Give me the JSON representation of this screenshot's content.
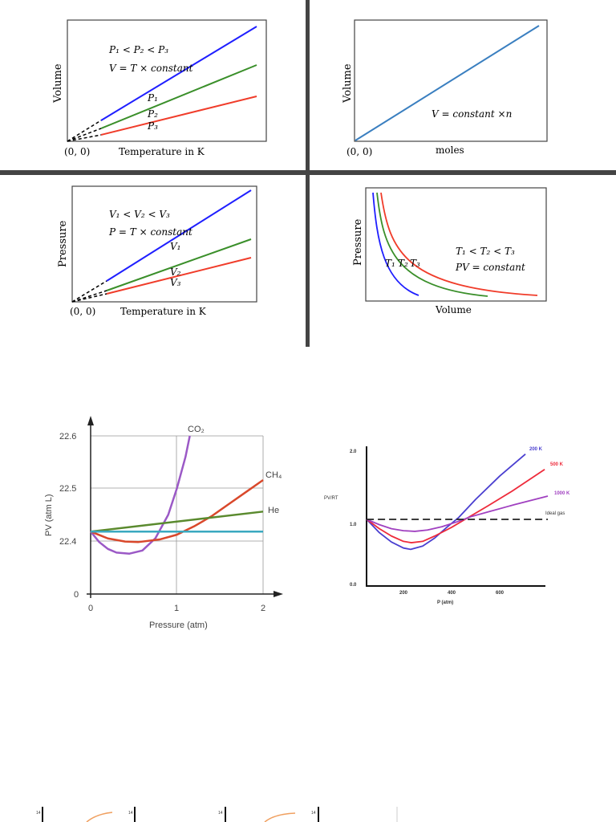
{
  "chart_data": [
    {
      "type": "line",
      "ylabel": "Volume",
      "xlabel": "Temperature in K",
      "origin_label": "(0, 0)",
      "annotations": [
        "P₁ < P₂ < P₃",
        "V = T × constant"
      ],
      "series": [
        {
          "name": "P₁",
          "color": "#1f1fff"
        },
        {
          "name": "P₂",
          "color": "#3a8f2a"
        },
        {
          "name": "P₃",
          "color": "#f03c2a"
        }
      ]
    },
    {
      "type": "line",
      "ylabel": "Volume",
      "xlabel": "moles",
      "origin_label": "(0, 0)",
      "annotations": [
        "V = constant ×n"
      ],
      "series": [
        {
          "color": "#3a7fc0"
        }
      ]
    },
    {
      "type": "line",
      "ylabel": "Pressure",
      "xlabel": "Temperature in K",
      "origin_label": "(0, 0)",
      "annotations": [
        "V₁ < V₂ < V₃",
        "P = T × constant"
      ],
      "series": [
        {
          "name": "V₁",
          "color": "#1f1fff"
        },
        {
          "name": "V₂",
          "color": "#3a8f2a"
        },
        {
          "name": "V₃",
          "color": "#f03c2a"
        }
      ]
    },
    {
      "type": "line",
      "ylabel": "Pressure",
      "xlabel": "Volume",
      "annotations": [
        "T₁ < T₂ < T₃",
        "PV = constant"
      ],
      "series": [
        {
          "name": "T₁",
          "color": "#1f1fff"
        },
        {
          "name": "T₂",
          "color": "#3a8f2a"
        },
        {
          "name": "T₃",
          "color": "#f03c2a"
        }
      ]
    },
    {
      "type": "line",
      "xlabel": "Pressure (atm)",
      "ylabel": "PV (atm L)",
      "xlim": [
        0,
        2
      ],
      "yticks": [
        "0",
        "22.4",
        "22.5",
        "22.6"
      ],
      "xticks": [
        "0",
        "1",
        "2"
      ],
      "grid": true,
      "series": [
        {
          "name": "CO₂",
          "color": "#9b59c6",
          "x": [
            0,
            0.1,
            0.2,
            0.3,
            0.45,
            0.6,
            0.75,
            0.9,
            1.0,
            1.1,
            1.15
          ],
          "y": [
            22.418,
            22.398,
            22.385,
            22.378,
            22.376,
            22.382,
            22.405,
            22.45,
            22.5,
            22.56,
            22.6
          ]
        },
        {
          "name": "CH₄",
          "color": "#d9482b",
          "x": [
            0,
            0.2,
            0.4,
            0.55,
            0.8,
            1.0,
            1.2,
            1.4,
            1.6,
            1.8,
            2.0
          ],
          "y": [
            22.418,
            22.405,
            22.399,
            22.398,
            22.403,
            22.412,
            22.428,
            22.447,
            22.47,
            22.493,
            22.516
          ]
        },
        {
          "name": "He",
          "color": "#5a8a2e",
          "x": [
            0,
            2
          ],
          "y": [
            22.418,
            22.456
          ]
        },
        {
          "color": "#3aa9c0",
          "x": [
            0,
            2
          ],
          "y": [
            22.418,
            22.418
          ]
        }
      ]
    },
    {
      "type": "line",
      "xlabel": "P (atm)",
      "ylabel": "PV/RT",
      "yticks": [
        "0.0",
        "1.0",
        "2.0"
      ],
      "xticks": [
        "200",
        "400",
        "600"
      ],
      "series": [
        {
          "name": "200 K",
          "color": "#4a3fd0",
          "x": [
            47,
            100,
            150,
            200,
            230,
            280,
            330,
            380,
            430,
            500,
            600,
            707
          ],
          "y": [
            1.0,
            0.8,
            0.66,
            0.57,
            0.55,
            0.6,
            0.72,
            0.88,
            1.03,
            1.3,
            1.65,
            1.98
          ]
        },
        {
          "name": "500 K",
          "color": "#ee2b3b",
          "x": [
            47,
            100,
            150,
            200,
            233,
            280,
            330,
            400,
            470,
            550,
            650,
            787
          ],
          "y": [
            1.0,
            0.86,
            0.75,
            0.67,
            0.65,
            0.67,
            0.75,
            0.88,
            1.03,
            1.2,
            1.42,
            1.75
          ]
        },
        {
          "name": "1000 K",
          "color": "#a040c0",
          "x": [
            47,
            100,
            150,
            200,
            247,
            300,
            360,
            420,
            480,
            560,
            660,
            800
          ],
          "y": [
            1.0,
            0.92,
            0.86,
            0.83,
            0.82,
            0.84,
            0.89,
            0.96,
            1.04,
            1.12,
            1.22,
            1.35
          ]
        },
        {
          "name": "Ideal gas",
          "color": "#222222",
          "dashed": true,
          "x": [
            47,
            800
          ],
          "y": [
            1.0,
            1.0
          ]
        }
      ]
    }
  ],
  "bottom_strip": {
    "tick_labels": [
      "14",
      "14",
      "14",
      "14"
    ]
  }
}
